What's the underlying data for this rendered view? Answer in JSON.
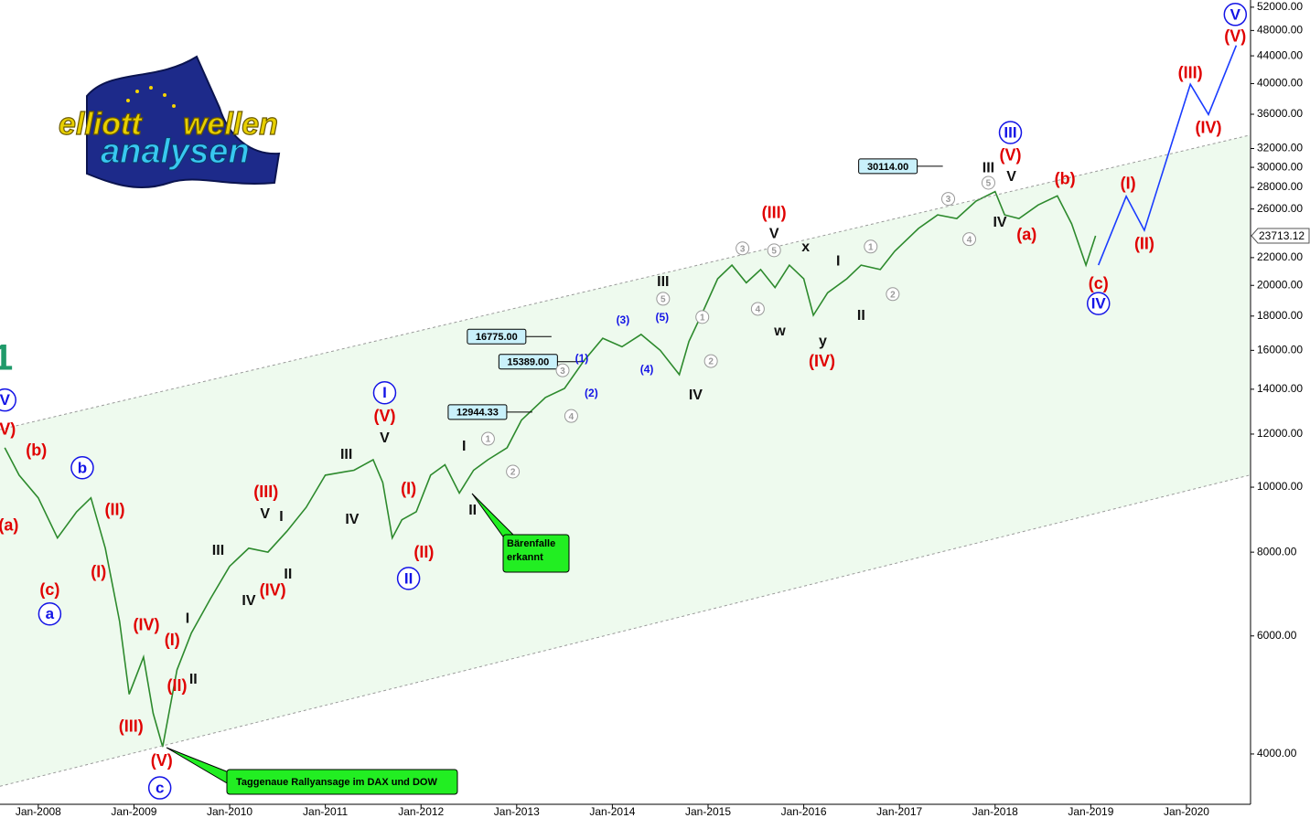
{
  "chart_data": {
    "type": "line",
    "yscale": "log",
    "xlim": [
      2007.6,
      2020.66
    ],
    "ylim": [
      3365,
      53300
    ],
    "xticks": [
      {
        "value": 2008,
        "label": "Jan-2008"
      },
      {
        "value": 2009,
        "label": "Jan-2009"
      },
      {
        "value": 2010,
        "label": "Jan-2010"
      },
      {
        "value": 2011,
        "label": "Jan-2011"
      },
      {
        "value": 2012,
        "label": "Jan-2012"
      },
      {
        "value": 2013,
        "label": "Jan-2013"
      },
      {
        "value": 2014,
        "label": "Jan-2014"
      },
      {
        "value": 2015,
        "label": "Jan-2015"
      },
      {
        "value": 2016,
        "label": "Jan-2016"
      },
      {
        "value": 2017,
        "label": "Jan-2017"
      },
      {
        "value": 2018,
        "label": "Jan-2018"
      },
      {
        "value": 2019,
        "label": "Jan-2019"
      },
      {
        "value": 2020,
        "label": "Jan-2020"
      }
    ],
    "yticks": [
      {
        "value": 4000,
        "label": "4000.00"
      },
      {
        "value": 6000,
        "label": "6000.00"
      },
      {
        "value": 8000,
        "label": "8000.00"
      },
      {
        "value": 10000,
        "label": "10000.00"
      },
      {
        "value": 12000,
        "label": "12000.00"
      },
      {
        "value": 14000,
        "label": "14000.00"
      },
      {
        "value": 16000,
        "label": "16000.00"
      },
      {
        "value": 18000,
        "label": "18000.00"
      },
      {
        "value": 20000,
        "label": "20000.00"
      },
      {
        "value": 22000,
        "label": "22000.00"
      },
      {
        "value": 26000,
        "label": "26000.00"
      },
      {
        "value": 28000,
        "label": "28000.00"
      },
      {
        "value": 30000,
        "label": "30000.00"
      },
      {
        "value": 32000,
        "label": "32000.00"
      },
      {
        "value": 36000,
        "label": "36000.00"
      },
      {
        "value": 40000,
        "label": "40000.00"
      },
      {
        "value": 44000,
        "label": "44000.00"
      },
      {
        "value": 48000,
        "label": "48000.00"
      },
      {
        "value": 52000,
        "label": "52000.00"
      }
    ],
    "series": [
      {
        "color": "#2d8a2d",
        "style": "solid",
        "x": [
          2007.65,
          2007.8,
          2008.0,
          2008.2,
          2008.4,
          2008.55,
          2008.7,
          2008.85,
          2008.95,
          2009.1,
          2009.2,
          2009.3,
          2009.45,
          2009.6,
          2009.8,
          2010.0,
          2010.2,
          2010.4,
          2010.6,
          2010.8,
          2011.0,
          2011.3,
          2011.5,
          2011.6,
          2011.7,
          2011.8,
          2011.95,
          2012.1,
          2012.25,
          2012.4,
          2012.55,
          2012.7,
          2012.9,
          2013.05,
          2013.3,
          2013.5,
          2013.7,
          2013.9,
          2014.1,
          2014.3,
          2014.5,
          2014.7,
          2014.8,
          2014.95,
          2015.1,
          2015.25,
          2015.4,
          2015.55,
          2015.7,
          2015.85,
          2016.0,
          2016.1,
          2016.25,
          2016.45,
          2016.6,
          2016.8,
          2016.95,
          2017.2,
          2017.4,
          2017.6,
          2017.8,
          2018.0,
          2018.1,
          2018.25,
          2018.45,
          2018.65,
          2018.8,
          2018.95,
          2019.05
        ],
        "values": [
          11450,
          10420,
          9640,
          8400,
          9190,
          9640,
          8110,
          6310,
          4910,
          5580,
          4600,
          4100,
          5340,
          6060,
          6820,
          7620,
          8110,
          8000,
          8600,
          9330,
          10420,
          10600,
          10990,
          10160,
          8400,
          8940,
          9190,
          10420,
          10800,
          9800,
          10600,
          10990,
          11450,
          12590,
          13610,
          14040,
          15420,
          16680,
          16200,
          16900,
          16000,
          14720,
          16500,
          18330,
          20460,
          21440,
          20180,
          21120,
          19850,
          21440,
          20460,
          18050,
          19500,
          20460,
          21440,
          21120,
          22490,
          24320,
          25480,
          25160,
          26720,
          27600,
          25480,
          25160,
          26360,
          27200,
          24700,
          21440,
          23713.12
        ]
      },
      {
        "color": "#1a3cff",
        "style": "solid",
        "x": [
          2019.08,
          2019.37,
          2019.56,
          2020.04,
          2020.23,
          2020.52
        ],
        "values": [
          21440,
          27160,
          24160,
          39900,
          35970,
          45600
        ]
      },
      {
        "color": "#9a9a9a",
        "style": "dashed",
        "channel": "upper",
        "x": [
          2007.6,
          2020.66
        ],
        "values": [
          12190,
          33500
        ]
      },
      {
        "color": "#9a9a9a",
        "style": "dashed",
        "channel": "lower",
        "x": [
          2007.6,
          2020.66
        ],
        "values": [
          3580,
          10420
        ]
      }
    ],
    "channel_fill": "#eefaee",
    "last_price": {
      "value": 23713.12,
      "label": "23713.12"
    },
    "price_boxes": [
      {
        "x": 2016.88,
        "value": 30114,
        "label": "30114.00"
      },
      {
        "x": 2012.79,
        "value": 16775,
        "label": "16775.00"
      },
      {
        "x": 2013.12,
        "value": 15389,
        "label": "15389.00"
      },
      {
        "x": 2012.59,
        "value": 12944.33,
        "label": "12944.33"
      }
    ],
    "annotations": [
      {
        "text": "1",
        "x": 2007.63,
        "y": 15530,
        "style": "teal"
      },
      {
        "text": "V",
        "x": 2007.65,
        "y": 13490,
        "style": "blue-circle"
      },
      {
        "text": "(V)",
        "x": 2007.65,
        "y": 12190,
        "style": "red"
      },
      {
        "text": "(b)",
        "x": 2007.98,
        "y": 11350,
        "style": "red"
      },
      {
        "text": "(a)",
        "x": 2007.69,
        "y": 8770,
        "style": "red"
      },
      {
        "text": "b",
        "x": 2008.46,
        "y": 10690,
        "style": "blue-circle"
      },
      {
        "text": "(II)",
        "x": 2008.8,
        "y": 9250,
        "style": "red"
      },
      {
        "text": "(I)",
        "x": 2008.63,
        "y": 7470,
        "style": "red"
      },
      {
        "text": "(c)",
        "x": 2008.12,
        "y": 7030,
        "style": "red"
      },
      {
        "text": "a",
        "x": 2008.12,
        "y": 6470,
        "style": "blue-circle"
      },
      {
        "text": "(IV)",
        "x": 2009.13,
        "y": 6230,
        "style": "red"
      },
      {
        "text": "(I)",
        "x": 2009.4,
        "y": 5920,
        "style": "red"
      },
      {
        "text": "(II)",
        "x": 2009.45,
        "y": 5060,
        "style": "red"
      },
      {
        "text": "(III)",
        "x": 2008.97,
        "y": 4400,
        "style": "red"
      },
      {
        "text": "I",
        "x": 2009.56,
        "y": 6380,
        "style": "black"
      },
      {
        "text": "II",
        "x": 2009.62,
        "y": 5180,
        "style": "black"
      },
      {
        "text": "(V)",
        "x": 2009.29,
        "y": 3910,
        "style": "red"
      },
      {
        "text": "c",
        "x": 2009.27,
        "y": 3560,
        "style": "blue-circle"
      },
      {
        "text": "III",
        "x": 2009.88,
        "y": 8060,
        "style": "black"
      },
      {
        "text": "IV",
        "x": 2010.2,
        "y": 6780,
        "style": "black"
      },
      {
        "text": "(III)",
        "x": 2010.38,
        "y": 9840,
        "style": "red"
      },
      {
        "text": "V",
        "x": 2010.37,
        "y": 9140,
        "style": "black"
      },
      {
        "text": "I",
        "x": 2010.54,
        "y": 9050,
        "style": "black"
      },
      {
        "text": "(IV)",
        "x": 2010.45,
        "y": 7020,
        "style": "red"
      },
      {
        "text": "II",
        "x": 2010.61,
        "y": 7430,
        "style": "black"
      },
      {
        "text": "III",
        "x": 2011.22,
        "y": 11200,
        "style": "black"
      },
      {
        "text": "IV",
        "x": 2011.28,
        "y": 8960,
        "style": "black"
      },
      {
        "text": "I",
        "x": 2011.62,
        "y": 13830,
        "style": "blue-circle"
      },
      {
        "text": "(V)",
        "x": 2011.62,
        "y": 12770,
        "style": "red"
      },
      {
        "text": "V",
        "x": 2011.62,
        "y": 11860,
        "style": "black"
      },
      {
        "text": "(I)",
        "x": 2011.87,
        "y": 9940,
        "style": "red"
      },
      {
        "text": "(II)",
        "x": 2012.03,
        "y": 8000,
        "style": "red"
      },
      {
        "text": "II",
        "x": 2011.87,
        "y": 7310,
        "style": "blue-circle"
      },
      {
        "text": "I",
        "x": 2012.45,
        "y": 11530,
        "style": "black"
      },
      {
        "text": "II",
        "x": 2012.54,
        "y": 9250,
        "style": "black"
      },
      {
        "text": "1",
        "x": 2012.7,
        "y": 11810,
        "style": "gray-circle"
      },
      {
        "text": "2",
        "x": 2012.96,
        "y": 10550,
        "style": "gray-circle"
      },
      {
        "text": "3",
        "x": 2013.48,
        "y": 14940,
        "style": "gray-circle"
      },
      {
        "text": "4",
        "x": 2013.57,
        "y": 12770,
        "style": "gray-circle"
      },
      {
        "text": "(1)",
        "x": 2013.68,
        "y": 15570,
        "style": "blue-small"
      },
      {
        "text": "(2)",
        "x": 2013.78,
        "y": 13830,
        "style": "blue-small"
      },
      {
        "text": "(3)",
        "x": 2014.11,
        "y": 17770,
        "style": "blue-small"
      },
      {
        "text": "(4)",
        "x": 2014.36,
        "y": 15000,
        "style": "blue-small"
      },
      {
        "text": "(5)",
        "x": 2014.52,
        "y": 17940,
        "style": "blue-small"
      },
      {
        "text": "III",
        "x": 2014.53,
        "y": 20280,
        "style": "black"
      },
      {
        "text": "5",
        "x": 2014.53,
        "y": 19100,
        "style": "gray-circle"
      },
      {
        "text": "IV",
        "x": 2014.87,
        "y": 13740,
        "style": "black"
      },
      {
        "text": "1",
        "x": 2014.94,
        "y": 17940,
        "style": "gray-circle"
      },
      {
        "text": "2",
        "x": 2015.03,
        "y": 15420,
        "style": "gray-circle"
      },
      {
        "text": "3",
        "x": 2015.36,
        "y": 22710,
        "style": "gray-circle"
      },
      {
        "text": "4",
        "x": 2015.52,
        "y": 18450,
        "style": "gray-circle"
      },
      {
        "text": "5",
        "x": 2015.69,
        "y": 22560,
        "style": "gray-circle"
      },
      {
        "text": "(III)",
        "x": 2015.69,
        "y": 25650,
        "style": "red"
      },
      {
        "text": "V",
        "x": 2015.69,
        "y": 23930,
        "style": "black"
      },
      {
        "text": "x",
        "x": 2016.02,
        "y": 22850,
        "style": "black"
      },
      {
        "text": "w",
        "x": 2015.75,
        "y": 17110,
        "style": "black"
      },
      {
        "text": "I",
        "x": 2016.36,
        "y": 21780,
        "style": "black"
      },
      {
        "text": "II",
        "x": 2016.6,
        "y": 18050,
        "style": "black"
      },
      {
        "text": "y",
        "x": 2016.2,
        "y": 16530,
        "style": "black"
      },
      {
        "text": "(IV)",
        "x": 2016.19,
        "y": 15420,
        "style": "red"
      },
      {
        "text": "1",
        "x": 2016.7,
        "y": 22850,
        "style": "gray-circle"
      },
      {
        "text": "2",
        "x": 2016.93,
        "y": 19410,
        "style": "gray-circle"
      },
      {
        "text": "3",
        "x": 2017.51,
        "y": 26920,
        "style": "gray-circle"
      },
      {
        "text": "4",
        "x": 2017.73,
        "y": 23440,
        "style": "gray-circle"
      },
      {
        "text": "5",
        "x": 2017.93,
        "y": 28450,
        "style": "gray-circle"
      },
      {
        "text": "III",
        "x": 2017.93,
        "y": 30000,
        "style": "black"
      },
      {
        "text": "V",
        "x": 2018.17,
        "y": 29090,
        "style": "black"
      },
      {
        "text": "IV",
        "x": 2018.05,
        "y": 24880,
        "style": "black"
      },
      {
        "text": "III",
        "x": 2018.16,
        "y": 33810,
        "style": "blue-circle"
      },
      {
        "text": "(V)",
        "x": 2018.16,
        "y": 31270,
        "style": "red"
      },
      {
        "text": "(a)",
        "x": 2018.33,
        "y": 23790,
        "style": "red"
      },
      {
        "text": "(b)",
        "x": 2018.73,
        "y": 28810,
        "style": "red"
      },
      {
        "text": "(c)",
        "x": 2019.08,
        "y": 20140,
        "style": "red"
      },
      {
        "text": "IV",
        "x": 2019.08,
        "y": 18790,
        "style": "blue-circle"
      },
      {
        "text": "(I)",
        "x": 2019.39,
        "y": 28370,
        "style": "red"
      },
      {
        "text": "(II)",
        "x": 2019.56,
        "y": 23070,
        "style": "red"
      },
      {
        "text": "(III)",
        "x": 2020.04,
        "y": 41480,
        "style": "red"
      },
      {
        "text": "(IV)",
        "x": 2020.23,
        "y": 34360,
        "style": "red"
      },
      {
        "text": "(V)",
        "x": 2020.51,
        "y": 47040,
        "style": "red"
      },
      {
        "text": "V",
        "x": 2020.51,
        "y": 50720,
        "style": "blue-circle"
      }
    ],
    "callouts": [
      {
        "lines": [
          "Bärenfalle",
          "erkannt"
        ]
      },
      {
        "lines": [
          "Taggenaue Rallyansage im DAX und DOW"
        ]
      }
    ],
    "logo": [
      "elliott",
      "wellen",
      "analysen"
    ]
  }
}
